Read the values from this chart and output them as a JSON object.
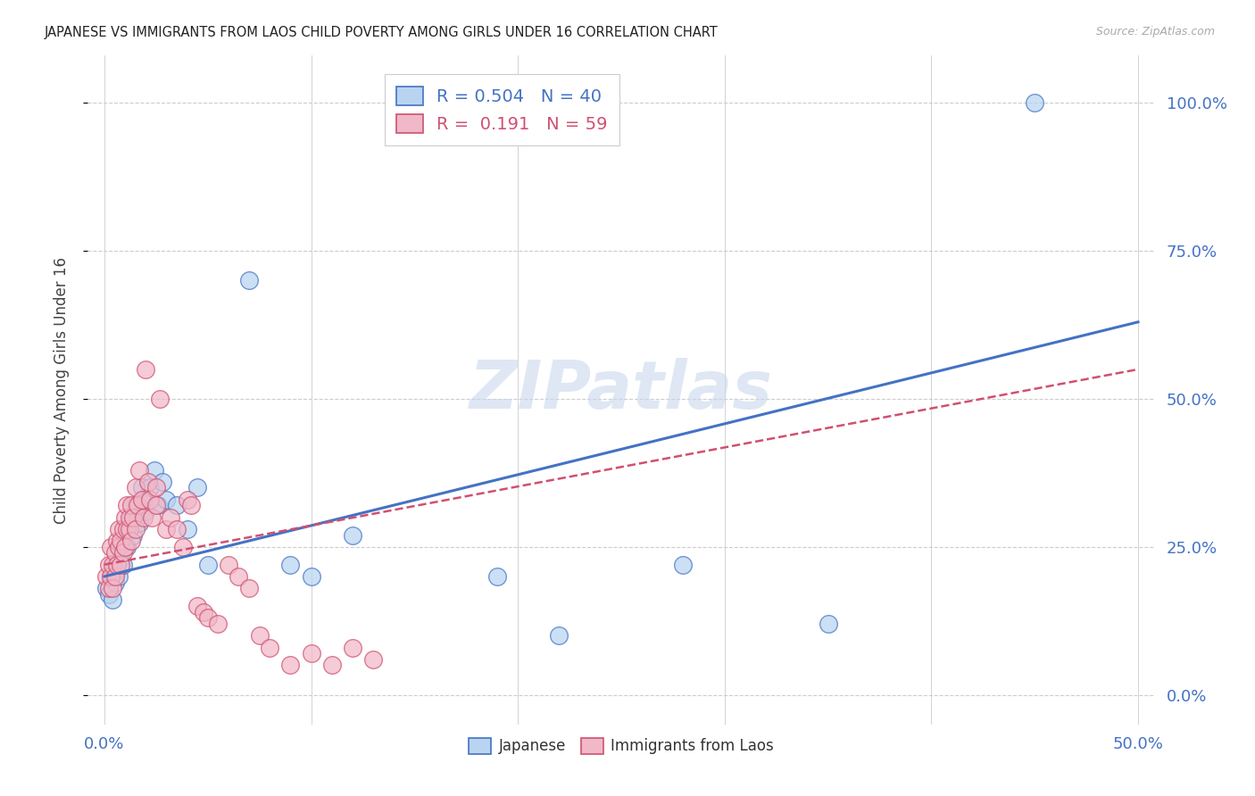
{
  "title": "JAPANESE VS IMMIGRANTS FROM LAOS CHILD POVERTY AMONG GIRLS UNDER 16 CORRELATION CHART",
  "source": "Source: ZipAtlas.com",
  "ylabel": "Child Poverty Among Girls Under 16",
  "watermark": "ZIPatlas",
  "legend1_label": "Japanese",
  "legend2_label": "Immigrants from Laos",
  "r1": "0.504",
  "n1": "40",
  "r2": "0.191",
  "n2": "59",
  "color_japanese_fill": "#b8d4f0",
  "color_japanese_edge": "#4472c4",
  "color_laos_fill": "#f0b8c8",
  "color_laos_edge": "#d05070",
  "color_line_japanese": "#4472c4",
  "color_line_laos": "#d05070",
  "ytick_labels": [
    "0.0%",
    "25.0%",
    "50.0%",
    "75.0%",
    "100.0%"
  ],
  "ytick_values": [
    0.0,
    0.25,
    0.5,
    0.75,
    1.0
  ],
  "xlim": [
    0.0,
    0.5
  ],
  "ylim": [
    -0.05,
    1.08
  ],
  "japanese_x": [
    0.001,
    0.002,
    0.003,
    0.004,
    0.005,
    0.005,
    0.006,
    0.007,
    0.008,
    0.008,
    0.009,
    0.01,
    0.011,
    0.012,
    0.013,
    0.014,
    0.015,
    0.016,
    0.017,
    0.018,
    0.019,
    0.02,
    0.022,
    0.024,
    0.026,
    0.028,
    0.03,
    0.035,
    0.04,
    0.045,
    0.05,
    0.07,
    0.09,
    0.1,
    0.12,
    0.19,
    0.22,
    0.28,
    0.35,
    0.45
  ],
  "japanese_y": [
    0.18,
    0.17,
    0.2,
    0.16,
    0.19,
    0.22,
    0.21,
    0.2,
    0.23,
    0.25,
    0.22,
    0.27,
    0.25,
    0.28,
    0.3,
    0.27,
    0.32,
    0.3,
    0.29,
    0.35,
    0.33,
    0.31,
    0.35,
    0.38,
    0.32,
    0.36,
    0.33,
    0.32,
    0.28,
    0.35,
    0.22,
    0.7,
    0.22,
    0.2,
    0.27,
    0.2,
    0.1,
    0.22,
    0.12,
    1.0
  ],
  "laos_x": [
    0.001,
    0.002,
    0.002,
    0.003,
    0.003,
    0.004,
    0.004,
    0.005,
    0.005,
    0.006,
    0.006,
    0.007,
    0.007,
    0.008,
    0.008,
    0.009,
    0.009,
    0.01,
    0.01,
    0.011,
    0.011,
    0.012,
    0.012,
    0.013,
    0.013,
    0.014,
    0.015,
    0.015,
    0.016,
    0.017,
    0.018,
    0.019,
    0.02,
    0.021,
    0.022,
    0.023,
    0.025,
    0.025,
    0.027,
    0.03,
    0.032,
    0.035,
    0.038,
    0.04,
    0.042,
    0.045,
    0.048,
    0.05,
    0.055,
    0.06,
    0.065,
    0.07,
    0.075,
    0.08,
    0.09,
    0.1,
    0.11,
    0.12,
    0.13
  ],
  "laos_y": [
    0.2,
    0.18,
    0.22,
    0.2,
    0.25,
    0.18,
    0.22,
    0.2,
    0.24,
    0.22,
    0.26,
    0.25,
    0.28,
    0.22,
    0.26,
    0.24,
    0.28,
    0.25,
    0.3,
    0.28,
    0.32,
    0.28,
    0.3,
    0.26,
    0.32,
    0.3,
    0.35,
    0.28,
    0.32,
    0.38,
    0.33,
    0.3,
    0.55,
    0.36,
    0.33,
    0.3,
    0.35,
    0.32,
    0.5,
    0.28,
    0.3,
    0.28,
    0.25,
    0.33,
    0.32,
    0.15,
    0.14,
    0.13,
    0.12,
    0.22,
    0.2,
    0.18,
    0.1,
    0.08,
    0.05,
    0.07,
    0.05,
    0.08,
    0.06
  ],
  "line_j_x0": 0.0,
  "line_j_y0": 0.2,
  "line_j_x1": 0.5,
  "line_j_y1": 0.63,
  "line_l_x0": 0.0,
  "line_l_y0": 0.22,
  "line_l_x1": 0.5,
  "line_l_y1": 0.55
}
